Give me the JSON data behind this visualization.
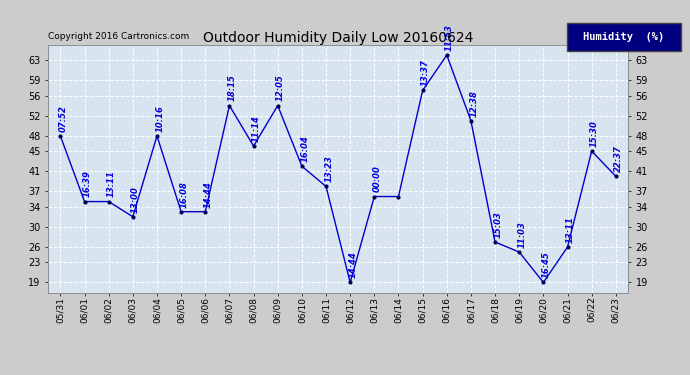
{
  "title": "Outdoor Humidity Daily Low 20160624",
  "copyright": "Copyright 2016 Cartronics.com",
  "legend_label": "Humidity  (%)",
  "x_labels": [
    "05/31",
    "06/01",
    "06/02",
    "06/03",
    "06/04",
    "06/05",
    "06/06",
    "06/07",
    "06/08",
    "06/09",
    "06/10",
    "06/11",
    "06/12",
    "06/13",
    "06/14",
    "06/15",
    "06/16",
    "06/17",
    "06/18",
    "06/19",
    "06/20",
    "06/21",
    "06/22",
    "06/23"
  ],
  "y_values": [
    48,
    35,
    35,
    32,
    48,
    33,
    33,
    54,
    46,
    54,
    42,
    38,
    19,
    36,
    36,
    57,
    64,
    51,
    27,
    25,
    19,
    26,
    45,
    40
  ],
  "point_labels": [
    "07:52",
    "16:39",
    "13:11",
    "13:00",
    "10:16",
    "16:08",
    "14:44",
    "18:15",
    "11:14",
    "12:05",
    "16:04",
    "13:23",
    "14:44",
    "00:00",
    "",
    "13:37",
    "11:53",
    "12:38",
    "15:03",
    "11:03",
    "16:45",
    "13:11",
    "15:30",
    "22:37"
  ],
  "y_ticks": [
    19,
    23,
    26,
    30,
    34,
    37,
    41,
    45,
    48,
    52,
    56,
    59,
    63
  ],
  "ylim": [
    17,
    66
  ],
  "line_color": "#0000cc",
  "marker_color": "#000055",
  "label_color": "#0000dd",
  "bg_color": "#cccccc",
  "plot_bg": "#d8e4f0",
  "title_color": "#000000",
  "copyright_color": "#000000",
  "legend_bg": "#000080",
  "legend_fg": "#ffffff",
  "grid_color": "#ffffff"
}
